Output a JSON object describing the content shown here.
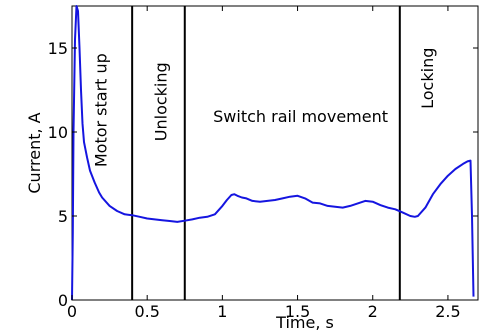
{
  "chart_data": {
    "type": "line",
    "xlabel": "Time, s",
    "ylabel": "Current, A",
    "xlim": [
      0,
      2.7
    ],
    "ylim": [
      0,
      17.5
    ],
    "x_ticks": [
      0,
      0.5,
      1,
      1.5,
      2,
      2.5
    ],
    "x_tick_labels": [
      "0",
      "0.5",
      "1",
      "1.5",
      "2",
      "2.5"
    ],
    "y_ticks": [
      0,
      5,
      10,
      15
    ],
    "y_tick_labels": [
      "0",
      "5",
      "10",
      "15"
    ],
    "grid": false,
    "line_color": "#1515e0",
    "series": [
      {
        "x": [
          0.0,
          0.005,
          0.01,
          0.02,
          0.03,
          0.04,
          0.05,
          0.06,
          0.07,
          0.08,
          0.1,
          0.12,
          0.15,
          0.18,
          0.2,
          0.25,
          0.3,
          0.35,
          0.4,
          0.45,
          0.5,
          0.55,
          0.6,
          0.65,
          0.7,
          0.75,
          0.8,
          0.85,
          0.9,
          0.95,
          1.0,
          1.03,
          1.06,
          1.08,
          1.1,
          1.13,
          1.16,
          1.2,
          1.25,
          1.3,
          1.35,
          1.4,
          1.45,
          1.5,
          1.55,
          1.6,
          1.65,
          1.7,
          1.75,
          1.8,
          1.85,
          1.9,
          1.95,
          2.0,
          2.05,
          2.1,
          2.15,
          2.2,
          2.25,
          2.28,
          2.3,
          2.35,
          2.4,
          2.45,
          2.5,
          2.55,
          2.6,
          2.63,
          2.65,
          2.66,
          2.67
        ],
        "y": [
          0.0,
          4.0,
          10.0,
          15.5,
          17.5,
          17.2,
          15.0,
          12.5,
          10.5,
          9.4,
          8.5,
          7.7,
          7.0,
          6.4,
          6.1,
          5.6,
          5.3,
          5.1,
          5.05,
          4.95,
          4.85,
          4.8,
          4.75,
          4.7,
          4.65,
          4.72,
          4.8,
          4.9,
          4.95,
          5.1,
          5.6,
          5.95,
          6.25,
          6.3,
          6.2,
          6.1,
          6.05,
          5.9,
          5.85,
          5.9,
          5.95,
          6.05,
          6.15,
          6.2,
          6.05,
          5.8,
          5.75,
          5.6,
          5.55,
          5.5,
          5.6,
          5.75,
          5.9,
          5.85,
          5.65,
          5.5,
          5.4,
          5.2,
          5.0,
          4.95,
          5.0,
          5.5,
          6.3,
          6.9,
          7.4,
          7.8,
          8.1,
          8.25,
          8.3,
          5.0,
          0.2
        ]
      }
    ],
    "vertical_lines": [
      0.4,
      0.75,
      2.18
    ],
    "annotations": [
      {
        "text": "Motor start up",
        "x": 0.23,
        "y": 11.3,
        "rotation": -90
      },
      {
        "text": "Unlocking",
        "x": 0.63,
        "y": 11.8,
        "rotation": -90
      },
      {
        "text": "Switch rail movement",
        "x": 1.52,
        "y": 10.6,
        "rotation": 0
      },
      {
        "text": "Locking",
        "x": 2.4,
        "y": 13.2,
        "rotation": -90
      }
    ]
  }
}
